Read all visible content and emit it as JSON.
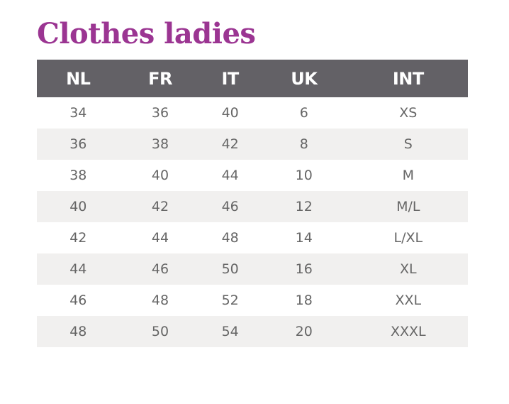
{
  "title": "Clothes ladies",
  "columns": [
    "NL",
    "FR",
    "IT",
    "UK",
    "INT"
  ],
  "rows": [
    [
      "34",
      "36",
      "40",
      "6",
      "XS"
    ],
    [
      "36",
      "38",
      "42",
      "8",
      "S"
    ],
    [
      "38",
      "40",
      "44",
      "10",
      "M"
    ],
    [
      "40",
      "42",
      "46",
      "12",
      "M/L"
    ],
    [
      "42",
      "44",
      "48",
      "14",
      "L/XL"
    ],
    [
      "44",
      "46",
      "50",
      "16",
      "XL"
    ],
    [
      "46",
      "48",
      "52",
      "18",
      "XXL"
    ],
    [
      "48",
      "50",
      "54",
      "20",
      "XXXL"
    ]
  ],
  "colors": {
    "title": "#9b3592",
    "header_bg": "#636166",
    "stripe": "#f1f0ef"
  }
}
